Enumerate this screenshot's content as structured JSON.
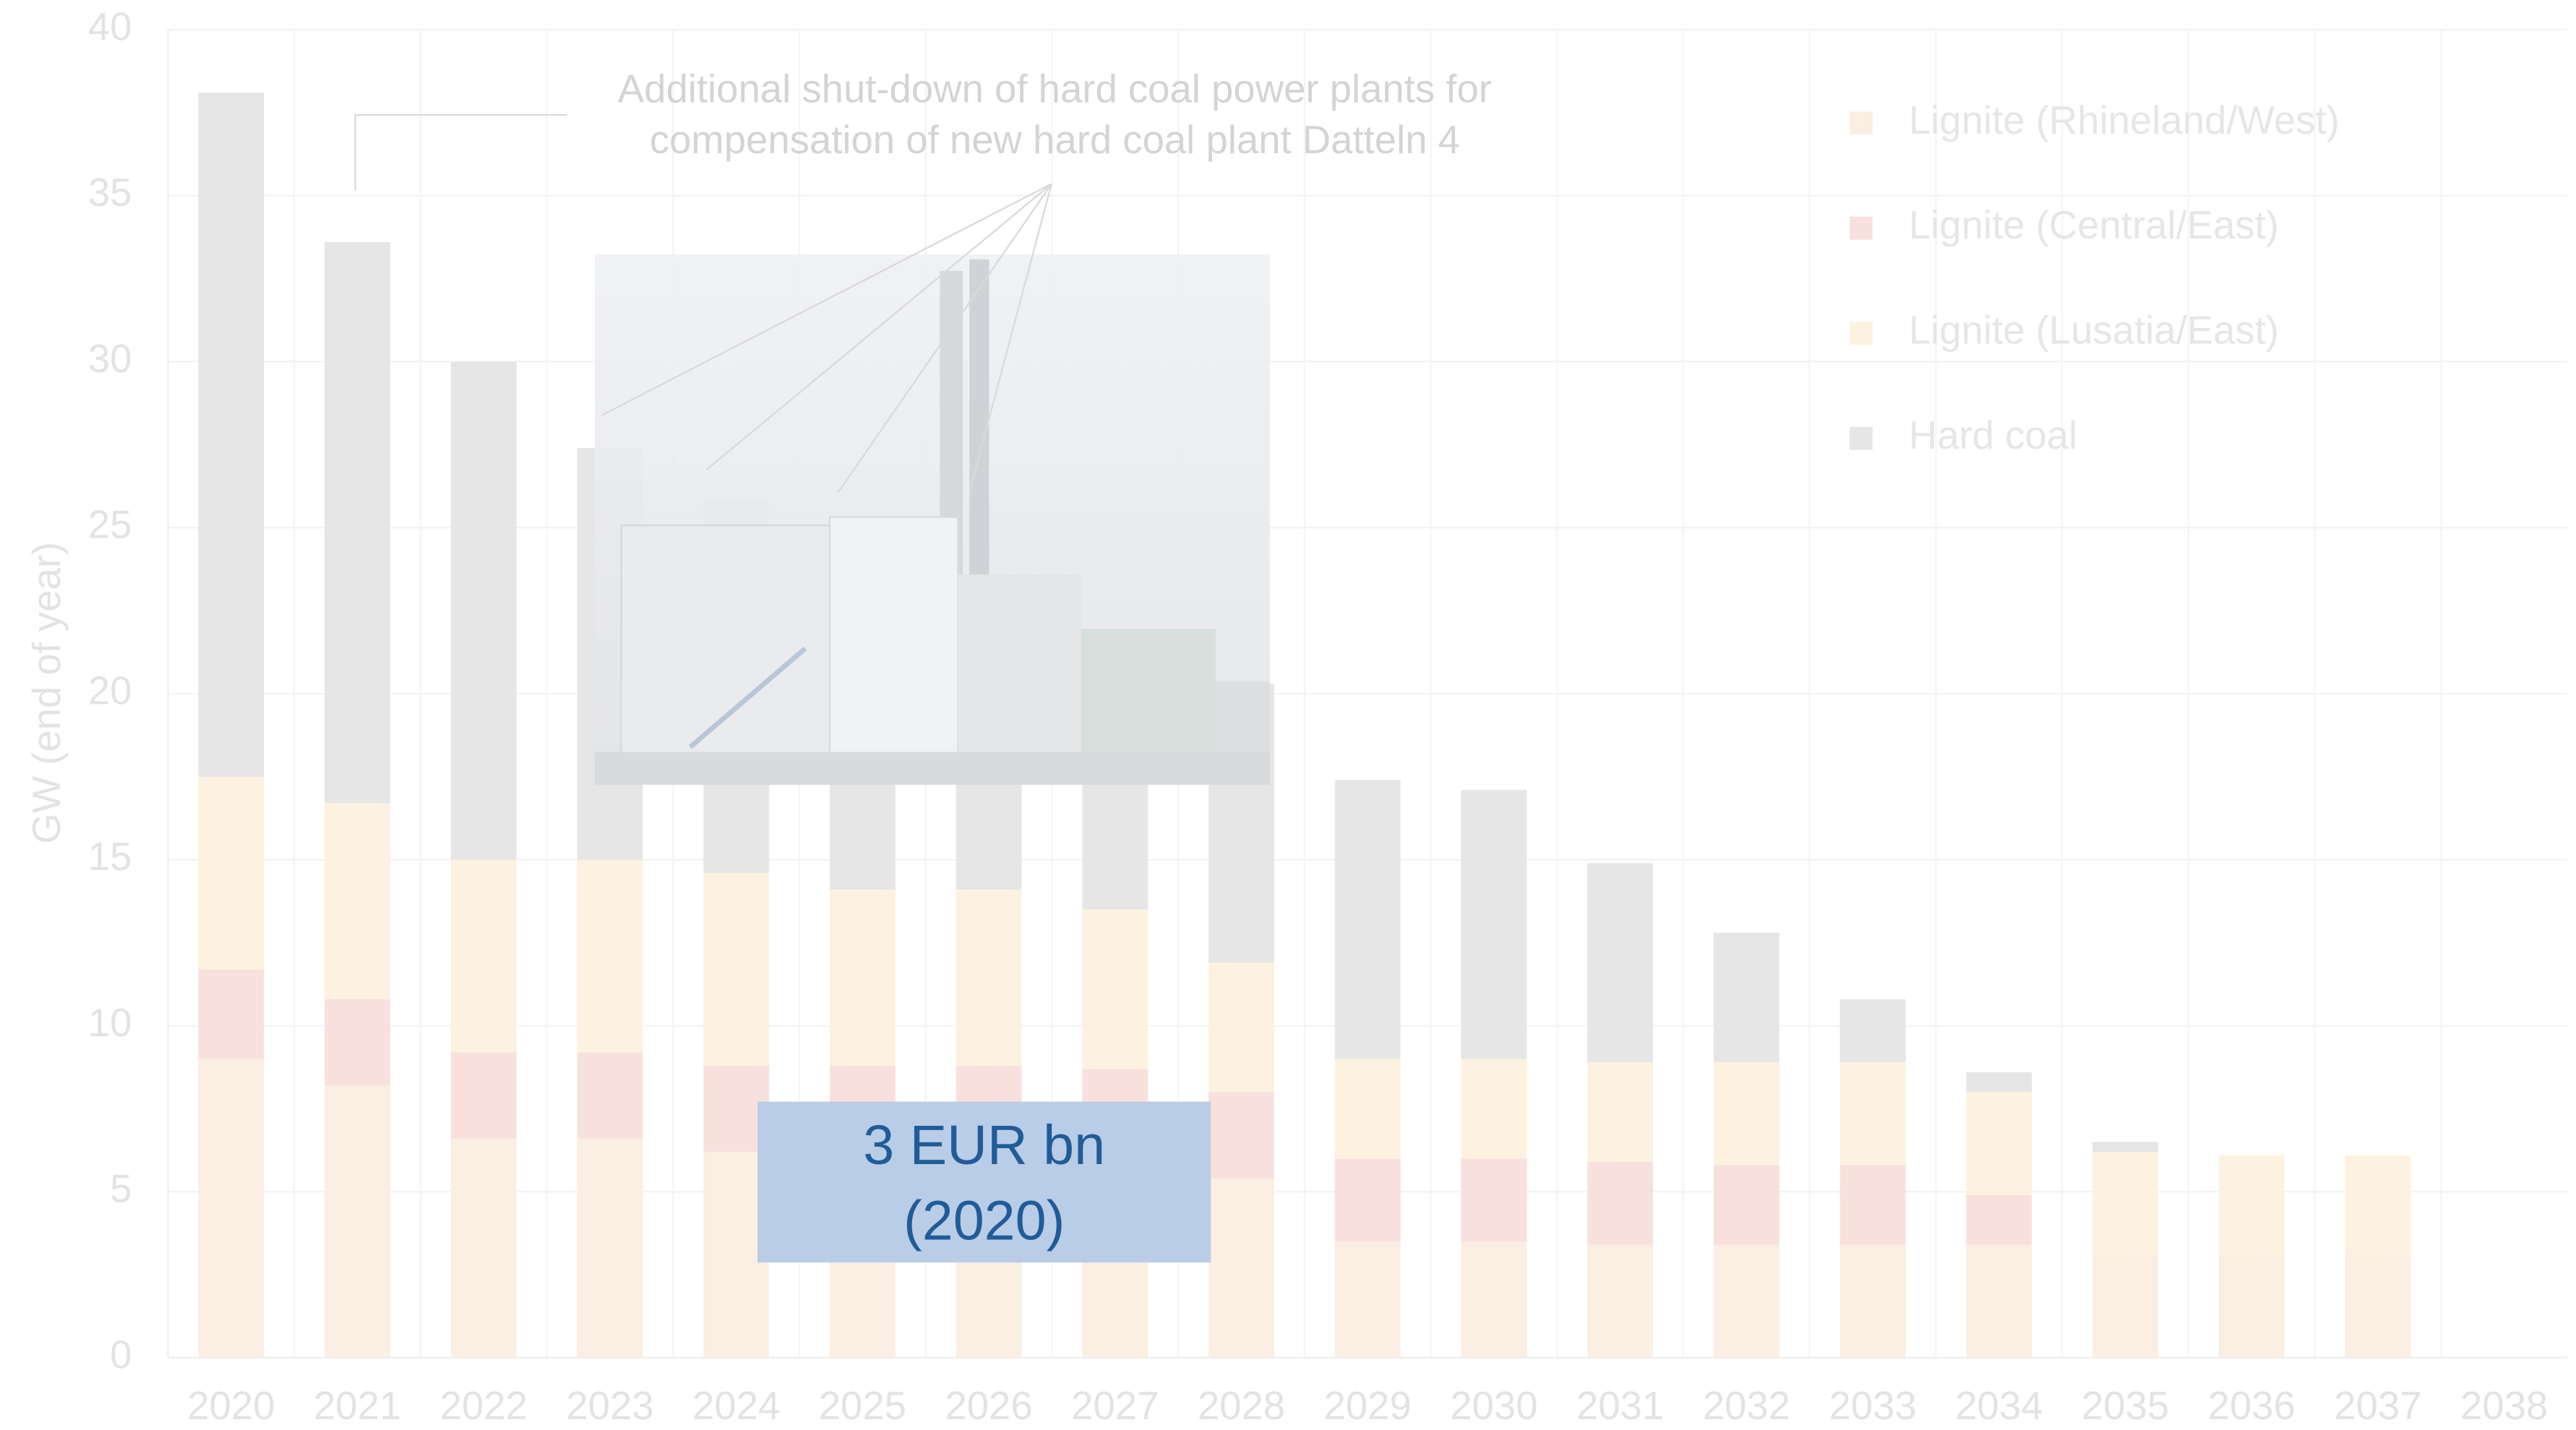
{
  "chart_data": {
    "type": "stacked_bar",
    "y_label": "GW (end of year)",
    "categories": [
      "2020",
      "2021",
      "2022",
      "2023",
      "2024",
      "2025",
      "2026",
      "2027",
      "2028",
      "2029",
      "2030",
      "2031",
      "2032",
      "2033",
      "2034",
      "2035",
      "2036",
      "2037",
      "2038"
    ],
    "series": [
      {
        "name": "Lignite (Rhineland/West)",
        "color": "#fbeee2",
        "values": [
          9.0,
          8.2,
          6.6,
          6.6,
          6.2,
          6.2,
          6.2,
          6.1,
          5.4,
          3.5,
          3.5,
          3.4,
          3.4,
          3.4,
          3.4,
          3.1,
          3.1,
          3.1,
          0
        ]
      },
      {
        "name": "Lignite (Central/East)",
        "color": "#f8e1dc",
        "values": [
          2.7,
          2.6,
          2.6,
          2.6,
          2.6,
          2.6,
          2.6,
          2.6,
          2.6,
          2.5,
          2.5,
          2.5,
          2.4,
          2.4,
          1.5,
          0,
          0,
          0,
          0
        ]
      },
      {
        "name": "Lignite (Lusatia/East)",
        "color": "#fdf2e0",
        "values": [
          5.8,
          5.9,
          5.8,
          5.8,
          5.8,
          5.3,
          5.3,
          4.8,
          3.9,
          3.0,
          3.0,
          3.0,
          3.1,
          3.1,
          3.1,
          3.1,
          3.0,
          3.0,
          0
        ]
      },
      {
        "name": "Hard coal",
        "color": "#e6e6e6",
        "values": [
          20.6,
          16.9,
          15.0,
          12.4,
          11.3,
          8.9,
          7.9,
          7.5,
          8.4,
          8.4,
          8.1,
          6.0,
          3.9,
          1.9,
          0.6,
          0.3,
          0,
          0,
          0
        ]
      }
    ],
    "ylim": [
      0,
      40
    ],
    "yticks": [
      0,
      5,
      10,
      15,
      20,
      25,
      30,
      35,
      40
    ],
    "grid": true,
    "legend": "top-right",
    "annotations": [
      "Additional shut-down of hard coal power plants for",
      "compensation of new hard coal plant Datteln 4"
    ],
    "callout": [
      "3  EUR bn",
      "(2020)"
    ]
  }
}
